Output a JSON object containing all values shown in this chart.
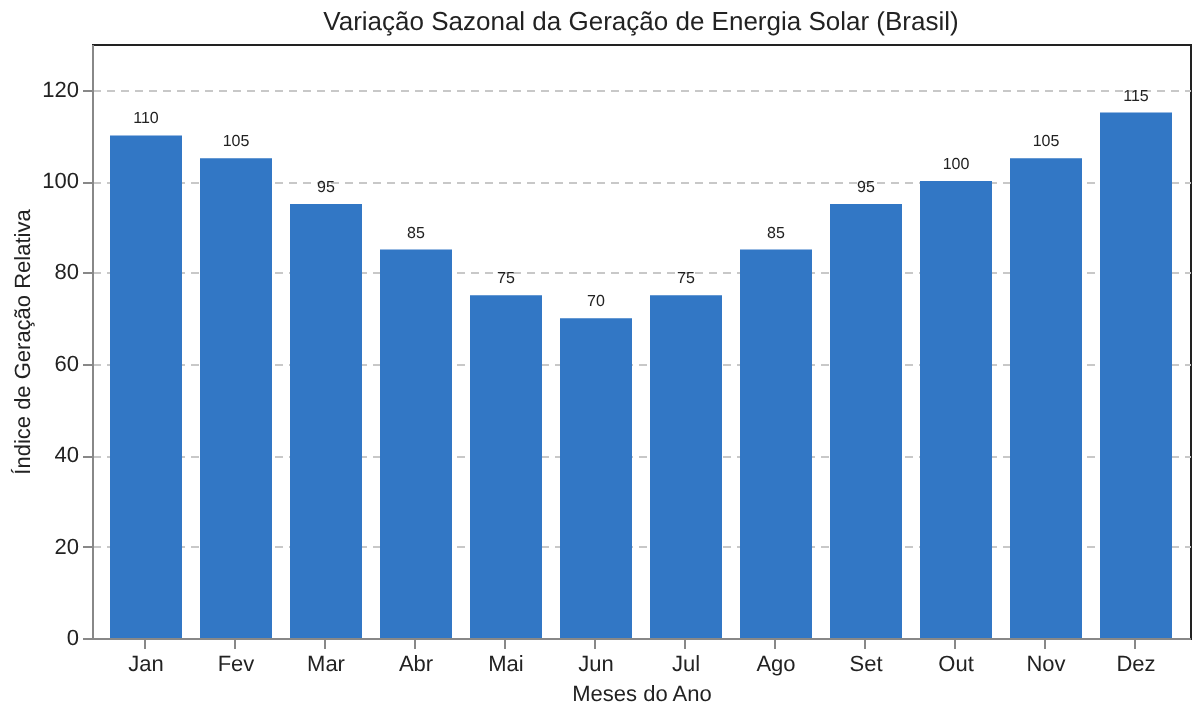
{
  "chart_data": {
    "type": "bar",
    "title": "Variação Sazonal da Geração de Energia Solar (Brasil)",
    "xlabel": "Meses do Ano",
    "ylabel": "Índice de Geração Relativa",
    "categories": [
      "Jan",
      "Fev",
      "Mar",
      "Abr",
      "Mai",
      "Jun",
      "Jul",
      "Ago",
      "Set",
      "Out",
      "Nov",
      "Dez"
    ],
    "values": [
      110,
      105,
      95,
      85,
      75,
      70,
      75,
      85,
      95,
      100,
      105,
      115
    ],
    "color": "#3277c5",
    "ylim": [
      0,
      130
    ],
    "yticks": [
      0,
      20,
      40,
      60,
      80,
      100,
      120
    ],
    "grid": "y",
    "data_labels": true
  }
}
